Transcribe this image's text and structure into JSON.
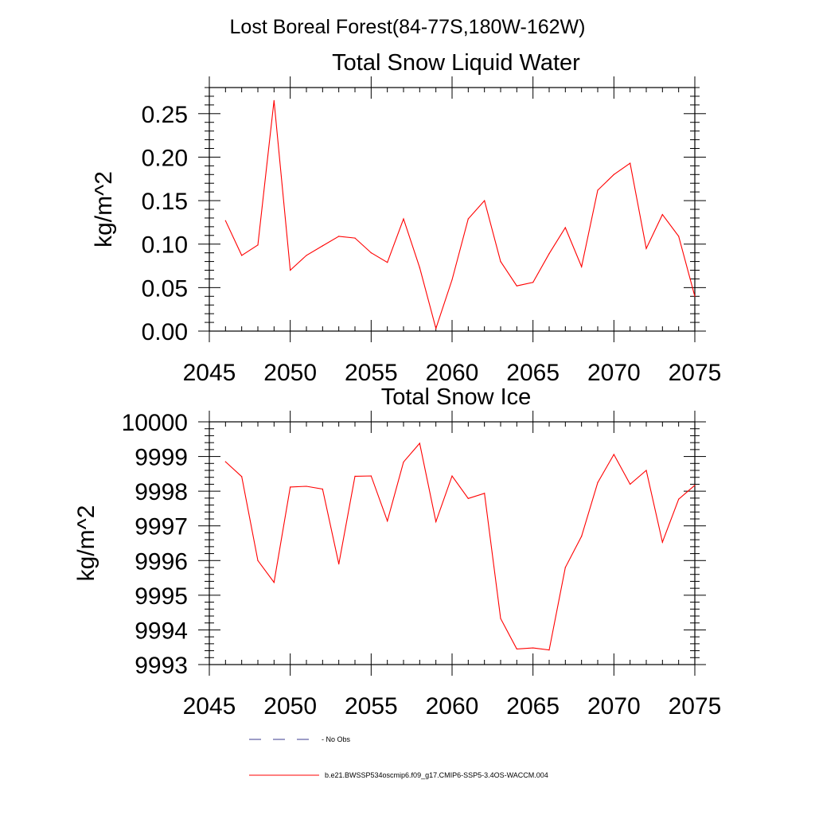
{
  "suptitle": "Lost Boreal Forest(84-77S,180W-162W)",
  "chart_data": [
    {
      "type": "line",
      "title": "Total Snow Liquid Water",
      "xlabel": "",
      "ylabel": "kg/m^2",
      "xlim": [
        2045,
        2075
      ],
      "ylim": [
        0.0,
        0.28
      ],
      "x_ticks": [
        2045,
        2050,
        2055,
        2060,
        2065,
        2070,
        2075
      ],
      "x_tick_labels": [
        "2045",
        "2050",
        "2055",
        "2060",
        "2065",
        "2070",
        "2075"
      ],
      "y_ticks": [
        0.0,
        0.05,
        0.1,
        0.15,
        0.2,
        0.25
      ],
      "y_tick_labels": [
        "0.00",
        "0.05",
        "0.10",
        "0.15",
        "0.20",
        "0.25"
      ],
      "series": [
        {
          "name": "b.e21.BWSSP534oscmip6.f09_g17.CMIP6-SSP5-3.4OS-WACCM.004",
          "color": "#ff0000",
          "x": [
            2046,
            2047,
            2048,
            2049,
            2050,
            2051,
            2052,
            2053,
            2054,
            2055,
            2056,
            2057,
            2058,
            2059,
            2060,
            2061,
            2062,
            2063,
            2064,
            2065,
            2066,
            2067,
            2068,
            2069,
            2070,
            2071,
            2072,
            2073,
            2074,
            2075
          ],
          "values": [
            0.127,
            0.087,
            0.099,
            0.265,
            0.07,
            0.087,
            0.098,
            0.109,
            0.107,
            0.09,
            0.079,
            0.129,
            0.073,
            0.003,
            0.059,
            0.129,
            0.15,
            0.08,
            0.052,
            0.056,
            0.089,
            0.119,
            0.074,
            0.162,
            0.18,
            0.193,
            0.095,
            0.134,
            0.109,
            0.04
          ]
        }
      ]
    },
    {
      "type": "line",
      "title": "Total Snow Ice",
      "xlabel": "",
      "ylabel": "kg/m^2",
      "xlim": [
        2045,
        2075
      ],
      "ylim": [
        9993,
        10000
      ],
      "x_ticks": [
        2045,
        2050,
        2055,
        2060,
        2065,
        2070,
        2075
      ],
      "x_tick_labels": [
        "2045",
        "2050",
        "2055",
        "2060",
        "2065",
        "2070",
        "2075"
      ],
      "y_ticks": [
        9993,
        9994,
        9995,
        9996,
        9997,
        9998,
        9999,
        10000
      ],
      "y_tick_labels": [
        "9993",
        "9994",
        "9995",
        "9996",
        "9997",
        "9998",
        "9999",
        "10000"
      ],
      "series": [
        {
          "name": "b.e21.BWSSP534oscmip6.f09_g17.CMIP6-SSP5-3.4OS-WACCM.004",
          "color": "#ff0000",
          "x": [
            2046,
            2047,
            2048,
            2049,
            2050,
            2051,
            2052,
            2053,
            2054,
            2055,
            2056,
            2057,
            2058,
            2059,
            2060,
            2061,
            2062,
            2063,
            2064,
            2065,
            2066,
            2067,
            2068,
            2069,
            2070,
            2071,
            2072,
            2073,
            2074,
            2075
          ],
          "values": [
            9998.85,
            9998.42,
            9996.0,
            9995.37,
            9998.12,
            9998.14,
            9998.06,
            9995.9,
            9998.43,
            9998.44,
            9997.14,
            9998.84,
            9999.38,
            9997.12,
            9998.44,
            9997.79,
            9997.94,
            9994.33,
            9993.45,
            9993.48,
            9993.42,
            9995.8,
            9996.7,
            9998.25,
            9999.06,
            9998.2,
            9998.6,
            9996.53,
            9997.77,
            9998.17
          ]
        }
      ]
    }
  ],
  "legend": {
    "entries": [
      {
        "label": "No Obs",
        "style": "dashed",
        "color": "#3b3b8f"
      },
      {
        "label": "b.e21.BWSSP534oscmip6.f09_g17.CMIP6-SSP5-3.4OS-WACCM.004",
        "style": "solid",
        "color": "#ff0000"
      }
    ]
  }
}
